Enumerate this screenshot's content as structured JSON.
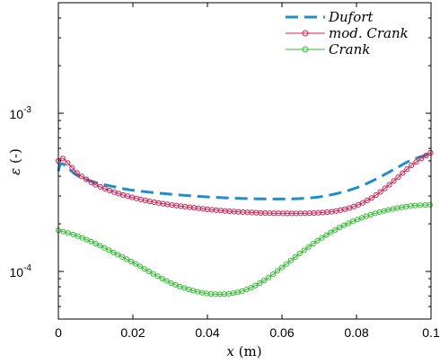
{
  "chart_data": {
    "type": "line",
    "title": "",
    "xlabel_var": "x",
    "xlabel_unit": " (m)",
    "ylabel_var": "ε",
    "ylabel_unit": " (-)",
    "xlim": [
      0,
      0.1
    ],
    "ylim": [
      5e-05,
      0.005
    ],
    "yscale": "log",
    "grid": false,
    "legend_position": "top-right",
    "x_ticks": [
      0,
      0.02,
      0.04,
      0.06,
      0.08,
      0.1
    ],
    "x_tick_labels": [
      "0",
      "0.02",
      "0.04",
      "0.06",
      "0.08",
      "0.1"
    ],
    "y_ticks": [
      0.0001,
      0.001
    ],
    "y_tick_bases": [
      "10",
      "10"
    ],
    "y_tick_exponents": [
      "-4",
      "-3"
    ],
    "series": [
      {
        "name": "Dufort",
        "color": "#1f8ec9",
        "style": "dashed",
        "marker": "none",
        "x": [
          0,
          0.001,
          0.005,
          0.01,
          0.015,
          0.02,
          0.03,
          0.04,
          0.05,
          0.06,
          0.065,
          0.07,
          0.075,
          0.08,
          0.085,
          0.09,
          0.095,
          0.1
        ],
        "values": [
          0.00043,
          0.00048,
          0.000405,
          0.000365,
          0.000343,
          0.000326,
          0.000308,
          0.000296,
          0.000289,
          0.000287,
          0.000289,
          0.000296,
          0.000312,
          0.000338,
          0.000381,
          0.000441,
          0.000509,
          0.000555
        ]
      },
      {
        "name": "mod. Crank",
        "color": "#cc2255",
        "style": "solid",
        "marker": "circle",
        "x": [
          0,
          0.001,
          0.0025,
          0.005,
          0.0075,
          0.01,
          0.015,
          0.02,
          0.025,
          0.03,
          0.035,
          0.04,
          0.045,
          0.05,
          0.055,
          0.06,
          0.065,
          0.07,
          0.075,
          0.08,
          0.085,
          0.09,
          0.095,
          0.1
        ],
        "values": [
          0.0005,
          0.00052,
          0.000485,
          0.00042,
          0.000382,
          0.000353,
          0.000317,
          0.000293,
          0.000276,
          0.000264,
          0.000255,
          0.000247,
          0.000241,
          0.000237,
          0.000234,
          0.000233,
          0.000233,
          0.000235,
          0.000242,
          0.000261,
          0.000301,
          0.000373,
          0.000473,
          0.000565
        ]
      },
      {
        "name": "Crank",
        "color": "#33bb33",
        "style": "solid",
        "marker": "circle",
        "x": [
          0,
          0.005,
          0.01,
          0.015,
          0.02,
          0.025,
          0.03,
          0.035,
          0.04,
          0.045,
          0.05,
          0.055,
          0.06,
          0.065,
          0.07,
          0.075,
          0.08,
          0.085,
          0.09,
          0.095,
          0.1
        ],
        "values": [
          0.000182,
          0.000168,
          0.00015,
          0.000131,
          0.000114,
          9.8e-05,
          8.5e-05,
          7.7e-05,
          7.25e-05,
          7.2e-05,
          7.6e-05,
          8.7e-05,
          0.000106,
          0.000131,
          0.000159,
          0.000187,
          0.000212,
          0.000233,
          0.000249,
          0.00026,
          0.000264
        ]
      }
    ]
  }
}
